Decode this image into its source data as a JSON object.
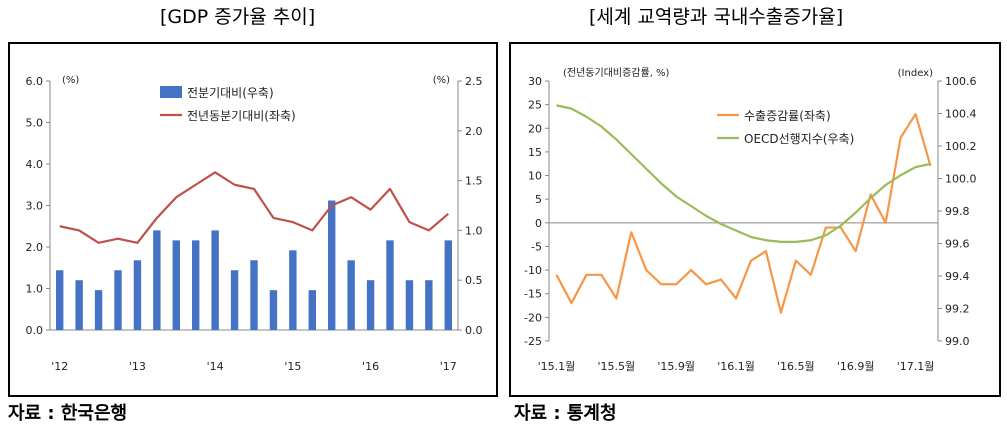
{
  "titles": {
    "left": "[GDP 증가율 추이]",
    "right": "[세계 교역량과 국내수출증가율]"
  },
  "sources": {
    "left": "자료 : 한국은행",
    "right": "자료 : 통계청"
  },
  "chart_data": [
    {
      "type": "bar+line",
      "left_unit": "(%)",
      "right_unit": "(%)",
      "left_ticks": [
        "6.0",
        "5.0",
        "4.0",
        "3.0",
        "2.0",
        "1.0",
        "0.0"
      ],
      "right_ticks": [
        "2.5",
        "2.0",
        "1.5",
        "1.0",
        "0.5",
        "0.0"
      ],
      "ylim_left": [
        0,
        6
      ],
      "ylim_right": [
        0,
        2.5
      ],
      "x_tick_labels": [
        {
          "label": "'12",
          "index": 0
        },
        {
          "label": "'13",
          "index": 4
        },
        {
          "label": "'14",
          "index": 8
        },
        {
          "label": "'15",
          "index": 12
        },
        {
          "label": "'16",
          "index": 16
        },
        {
          "label": "'17",
          "index": 20
        }
      ],
      "series": [
        {
          "name": "전분기대비(우축)",
          "type": "bar",
          "axis": "right",
          "color": "#4472C4",
          "values": [
            0.6,
            0.5,
            0.4,
            0.6,
            0.7,
            1.0,
            0.9,
            0.9,
            1.0,
            0.6,
            0.7,
            0.4,
            0.8,
            0.4,
            1.3,
            0.7,
            0.5,
            0.9,
            0.5,
            0.5,
            0.9
          ]
        },
        {
          "name": "전년동분기대비(좌축)",
          "type": "line",
          "axis": "left",
          "color": "#C0504D",
          "values": [
            2.5,
            2.4,
            2.1,
            2.2,
            2.1,
            2.7,
            3.2,
            3.5,
            3.8,
            3.5,
            3.4,
            2.7,
            2.6,
            2.4,
            3.0,
            3.2,
            2.9,
            3.4,
            2.6,
            2.4,
            2.8
          ]
        }
      ]
    },
    {
      "type": "line",
      "left_unit": "(전년동기대비증감률, %)",
      "right_unit": "(Index)",
      "left_ticks": [
        "30",
        "25",
        "20",
        "15",
        "10",
        "5",
        "0",
        "-5",
        "-10",
        "-15",
        "-20",
        "-25"
      ],
      "right_ticks": [
        "100.6",
        "100.4",
        "100.2",
        "100.0",
        "99.8",
        "99.6",
        "99.4",
        "99.2",
        "99.0"
      ],
      "ylim_left": [
        -25,
        30
      ],
      "ylim_right": [
        99.0,
        100.6
      ],
      "x_tick_labels": [
        {
          "label": "'15.1월",
          "index": 0
        },
        {
          "label": "'15.5월",
          "index": 4
        },
        {
          "label": "'15.9월",
          "index": 8
        },
        {
          "label": "'16.1월",
          "index": 12
        },
        {
          "label": "'16.5월",
          "index": 16
        },
        {
          "label": "'16.9월",
          "index": 20
        },
        {
          "label": "'17.1월",
          "index": 24
        }
      ],
      "series": [
        {
          "name": "수출증감률(좌축)",
          "type": "line",
          "axis": "left",
          "color": "#F79646",
          "values": [
            -11,
            -17,
            -11,
            -11,
            -16,
            -2,
            -10,
            -13,
            -13,
            -10,
            -13,
            -12,
            -16,
            -8,
            -6,
            -19,
            -8,
            -11,
            -1,
            -1,
            -6,
            6,
            0,
            18,
            23,
            12
          ]
        },
        {
          "name": "OECD선행지수(우축)",
          "type": "line",
          "axis": "right",
          "color": "#9BBB59",
          "values": [
            100.45,
            100.43,
            100.38,
            100.32,
            100.24,
            100.15,
            100.06,
            99.97,
            99.89,
            99.83,
            99.77,
            99.72,
            99.68,
            99.64,
            99.62,
            99.61,
            99.61,
            99.62,
            99.65,
            99.71,
            99.79,
            99.88,
            99.96,
            100.02,
            100.07,
            100.09
          ]
        }
      ]
    }
  ]
}
